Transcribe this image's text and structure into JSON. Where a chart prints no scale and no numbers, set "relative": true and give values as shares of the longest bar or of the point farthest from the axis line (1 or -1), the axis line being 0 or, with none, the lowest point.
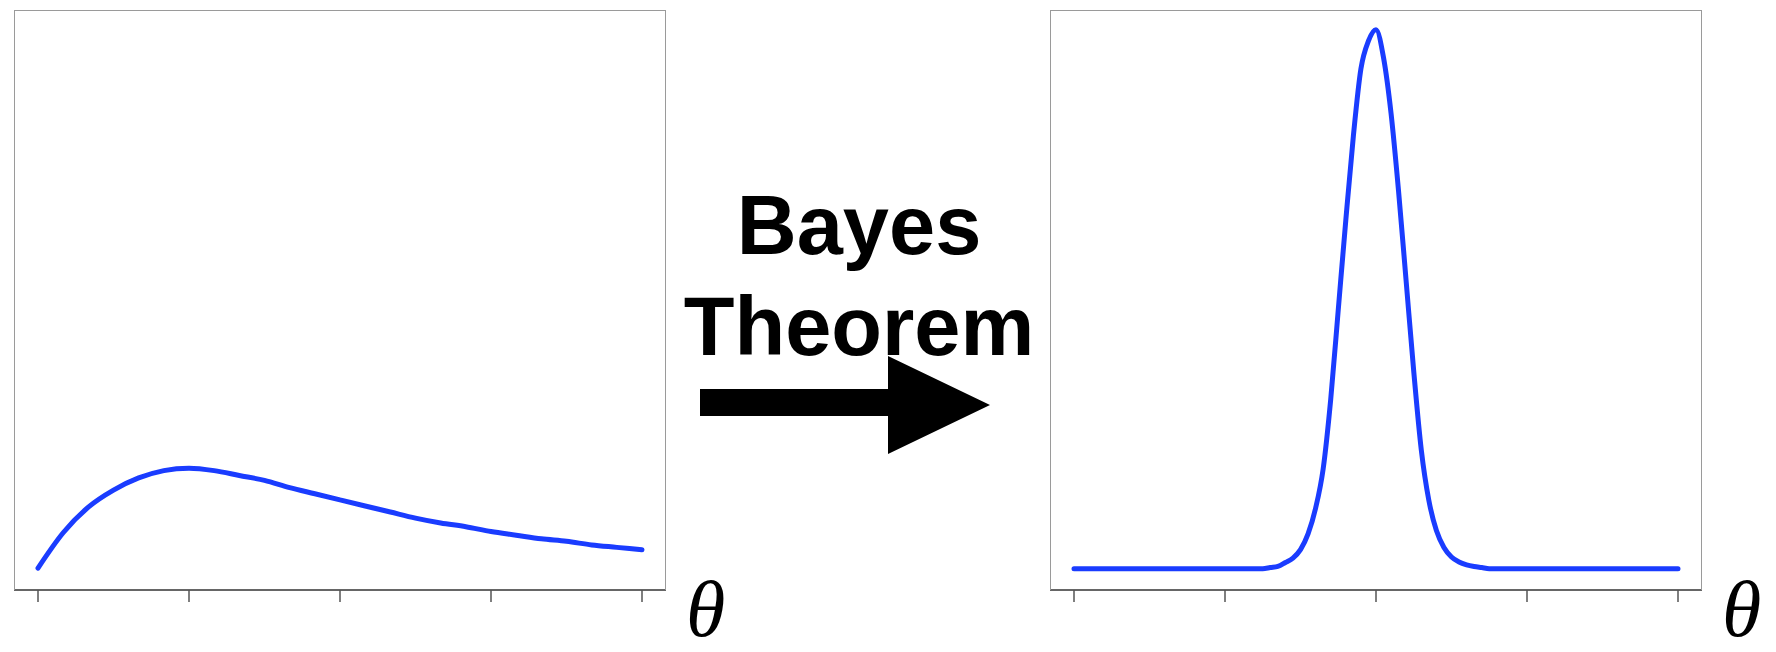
{
  "chart_data": [
    {
      "type": "line",
      "xlabel": "θ",
      "relative": true,
      "marker": "none",
      "categories": [
        null,
        null,
        null,
        null,
        null,
        null,
        null,
        null,
        null,
        null,
        null,
        null,
        null,
        null,
        null,
        null,
        null,
        null,
        null,
        null,
        null,
        null,
        null,
        null,
        null
      ],
      "series": [
        {
          "color": "#1a3cff",
          "values": [
            0.18,
            0.47,
            0.68,
            0.82,
            0.92,
            0.98,
            1.0,
            0.98,
            0.94,
            0.9,
            0.84,
            0.79,
            0.74,
            0.69,
            0.64,
            0.59,
            0.55,
            0.52,
            0.48,
            0.45,
            0.42,
            0.4,
            0.37,
            0.35,
            0.33
          ]
        }
      ]
    },
    {
      "type": "other",
      "annotations": [
        "Bayes Theorem"
      ]
    },
    {
      "type": "line",
      "xlabel": "θ",
      "relative": true,
      "marker": "none",
      "categories": [
        null,
        null,
        null,
        null,
        null,
        null,
        null,
        null,
        null,
        null,
        null,
        null,
        null,
        null,
        null,
        null,
        null,
        null,
        null,
        null,
        null,
        null,
        null,
        null,
        null,
        null,
        null,
        null,
        null,
        null,
        null,
        null,
        null,
        null,
        null,
        null,
        null,
        null,
        null,
        null,
        null,
        null,
        null,
        null,
        null,
        null,
        null,
        null,
        null,
        null,
        null,
        null,
        null,
        null,
        null,
        null,
        null,
        null,
        null,
        null,
        null,
        null,
        null,
        null,
        null,
        null,
        null,
        null,
        null,
        null,
        null,
        null,
        null,
        null,
        null,
        null,
        null,
        null,
        null,
        null,
        null
      ],
      "series": [
        {
          "color": "#1a3cff",
          "values": [
            0.038,
            0.038,
            0.038,
            0.038,
            0.038,
            0.038,
            0.038,
            0.038,
            0.038,
            0.038,
            0.038,
            0.038,
            0.038,
            0.038,
            0.038,
            0.038,
            0.038,
            0.038,
            0.038,
            0.038,
            0.038,
            0.038,
            0.038,
            0.038,
            0.038,
            0.038,
            0.04,
            0.042,
            0.049,
            0.057,
            0.072,
            0.1,
            0.146,
            0.216,
            0.34,
            0.5,
            0.66,
            0.81,
            0.93,
            0.98,
            1.0,
            0.95,
            0.85,
            0.71,
            0.55,
            0.39,
            0.25,
            0.16,
            0.106,
            0.076,
            0.059,
            0.05,
            0.045,
            0.042,
            0.04,
            0.038,
            0.038,
            0.038,
            0.038,
            0.038,
            0.038,
            0.038,
            0.038,
            0.038,
            0.038,
            0.038,
            0.038,
            0.038,
            0.038,
            0.038,
            0.038,
            0.038,
            0.038,
            0.038,
            0.038,
            0.038,
            0.038,
            0.038,
            0.038,
            0.038,
            0.038
          ]
        }
      ]
    }
  ]
}
